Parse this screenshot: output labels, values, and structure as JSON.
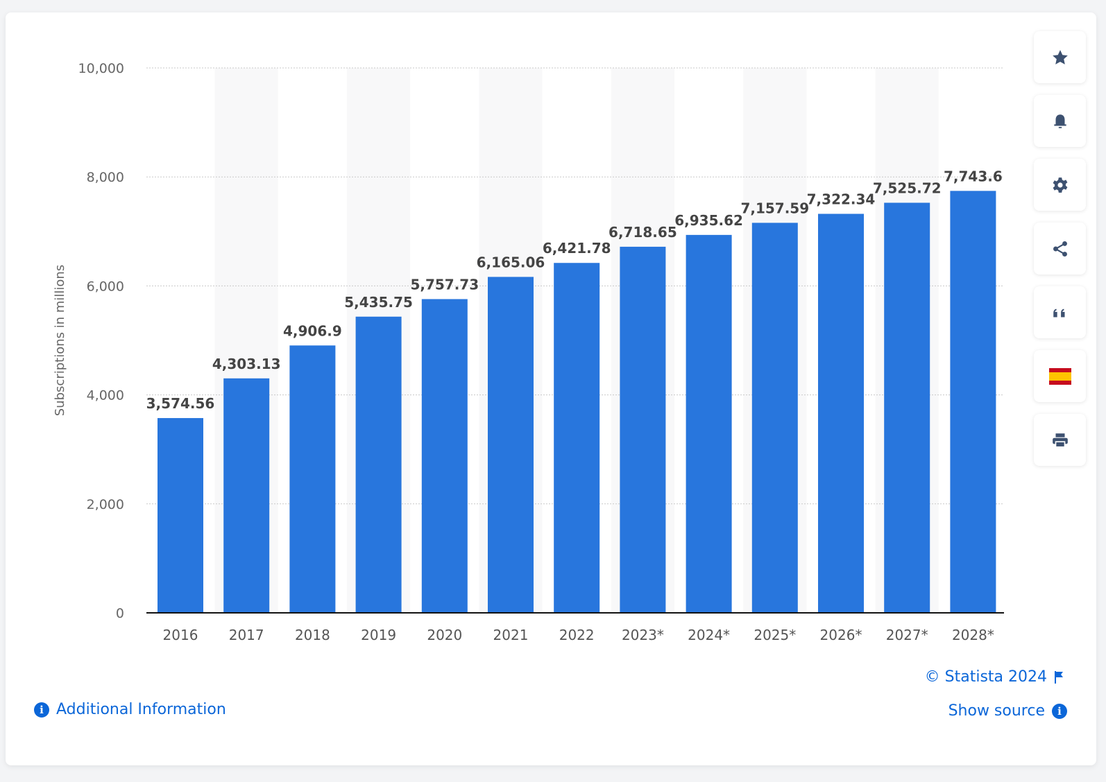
{
  "chart_data": {
    "type": "bar",
    "categories": [
      "2016",
      "2017",
      "2018",
      "2019",
      "2020",
      "2021",
      "2022",
      "2023*",
      "2024*",
      "2025*",
      "2026*",
      "2027*",
      "2028*"
    ],
    "values": [
      3574.56,
      4303.13,
      4906.9,
      5435.75,
      5757.73,
      6165.06,
      6421.78,
      6718.65,
      6935.62,
      7157.59,
      7322.34,
      7525.72,
      7743.6
    ],
    "data_labels": [
      "3,574.56",
      "4,303.13",
      "4,906.9",
      "5,435.75",
      "5,757.73",
      "6,165.06",
      "6,421.78",
      "6,718.65",
      "6,935.62",
      "7,157.59",
      "7,322.34",
      "7,525.72",
      "7,743.6"
    ],
    "ylabel": "Subscriptions in millions",
    "ylim": [
      0,
      10000
    ],
    "yticks": [
      0,
      2000,
      4000,
      6000,
      8000,
      10000
    ],
    "ytick_labels": [
      "0",
      "2,000",
      "4,000",
      "6,000",
      "8,000",
      "10,000"
    ],
    "grid": true,
    "bar_color": "#2876dd",
    "legend": "none"
  },
  "sidebar": {
    "icons": [
      "star-icon",
      "bell-icon",
      "gear-icon",
      "share-icon",
      "quote-icon",
      "spain-flag-icon",
      "print-icon"
    ]
  },
  "footer": {
    "additional_info": "Additional Information",
    "copyright": "© Statista 2024",
    "show_source": "Show source",
    "link_color": "#0b66d8"
  }
}
